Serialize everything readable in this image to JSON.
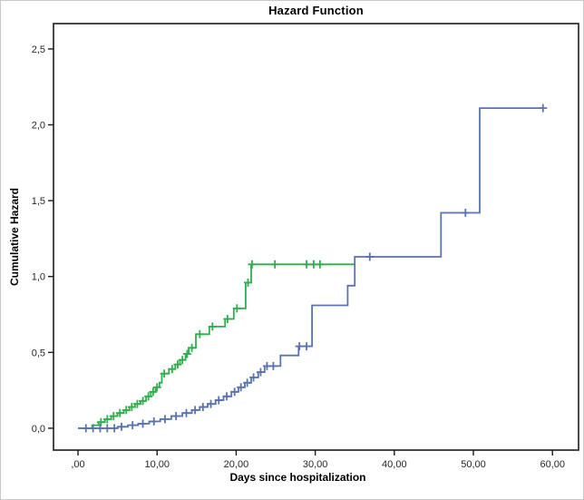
{
  "chart_data": {
    "type": "line",
    "subtype": "step-cumulative-hazard",
    "title": "Hazard Function",
    "xlabel": "Days since hospitalization",
    "ylabel": "Cumulative Hazard",
    "grid": false,
    "legend": "none",
    "frame_color": "#1c1c1c",
    "background_color": "#ffffff",
    "xlim": [
      -3.1,
      63.3
    ],
    "ylim": [
      -0.144,
      2.667
    ],
    "x_ticks": [
      0,
      10,
      20,
      30,
      40,
      50,
      60
    ],
    "x_tick_labels": [
      ",00",
      "10,00",
      "20,00",
      "30,00",
      "40,00",
      "50,00",
      "60,00"
    ],
    "y_ticks": [
      0,
      0.5,
      1.0,
      1.5,
      2.0,
      2.5
    ],
    "y_tick_labels": [
      "0,0",
      "0,5",
      "1,0",
      "1,5",
      "2,0",
      "2,5"
    ],
    "series": [
      {
        "name": "green-group",
        "color": "#2fae4e",
        "end_day": 35.0,
        "steps": [
          [
            0,
            0
          ],
          [
            1.8,
            0.02
          ],
          [
            2.6,
            0.04
          ],
          [
            3.4,
            0.06
          ],
          [
            4.2,
            0.08
          ],
          [
            5,
            0.1
          ],
          [
            5.8,
            0.12
          ],
          [
            6.5,
            0.14
          ],
          [
            7.2,
            0.16
          ],
          [
            7.9,
            0.18
          ],
          [
            8.6,
            0.21
          ],
          [
            9.2,
            0.24
          ],
          [
            9.8,
            0.27
          ],
          [
            10.3,
            0.3
          ],
          [
            10.6,
            0.36
          ],
          [
            11.5,
            0.39
          ],
          [
            12.3,
            0.42
          ],
          [
            12.9,
            0.45
          ],
          [
            13.6,
            0.49
          ],
          [
            14,
            0.53
          ],
          [
            14.9,
            0.62
          ],
          [
            16.6,
            0.67
          ],
          [
            18.6,
            0.72
          ],
          [
            19.7,
            0.79
          ],
          [
            21.2,
            0.96
          ],
          [
            21.9,
            1.08
          ]
        ],
        "censors": [
          [
            2.9,
            0.04
          ],
          [
            3.7,
            0.06
          ],
          [
            4.5,
            0.08
          ],
          [
            5.3,
            0.1
          ],
          [
            6.1,
            0.12
          ],
          [
            6.8,
            0.14
          ],
          [
            7.5,
            0.16
          ],
          [
            8.2,
            0.18
          ],
          [
            8.9,
            0.21
          ],
          [
            9.5,
            0.24
          ],
          [
            10,
            0.27
          ],
          [
            10.9,
            0.36
          ],
          [
            11.9,
            0.39
          ],
          [
            12.6,
            0.42
          ],
          [
            13.2,
            0.45
          ],
          [
            13.8,
            0.49
          ],
          [
            14.4,
            0.53
          ],
          [
            15.4,
            0.62
          ],
          [
            17,
            0.67
          ],
          [
            18.9,
            0.72
          ],
          [
            20.1,
            0.79
          ],
          [
            21.5,
            0.96
          ],
          [
            22,
            1.08
          ],
          [
            24.9,
            1.08
          ],
          [
            28.9,
            1.08
          ],
          [
            29.8,
            1.08
          ],
          [
            30.6,
            1.08
          ]
        ]
      },
      {
        "name": "blue-group",
        "color": "#5873b0",
        "end_day": 58.8,
        "steps": [
          [
            0,
            0
          ],
          [
            5,
            0.01
          ],
          [
            6.3,
            0.02
          ],
          [
            7.6,
            0.03
          ],
          [
            9,
            0.045
          ],
          [
            10.4,
            0.06
          ],
          [
            11.8,
            0.08
          ],
          [
            13.2,
            0.1
          ],
          [
            14.4,
            0.12
          ],
          [
            15.4,
            0.14
          ],
          [
            16.4,
            0.16
          ],
          [
            17.4,
            0.185
          ],
          [
            18.4,
            0.21
          ],
          [
            19.4,
            0.24
          ],
          [
            20.3,
            0.27
          ],
          [
            21.1,
            0.3
          ],
          [
            21.9,
            0.335
          ],
          [
            22.8,
            0.37
          ],
          [
            23.6,
            0.41
          ],
          [
            25.6,
            0.48
          ],
          [
            27.9,
            0.54
          ],
          [
            29.6,
            0.81
          ],
          [
            34.1,
            0.94
          ],
          [
            35,
            1.13
          ],
          [
            45.9,
            1.42
          ],
          [
            50.8,
            2.11
          ]
        ],
        "censors": [
          [
            1,
            0
          ],
          [
            1.9,
            0
          ],
          [
            2.8,
            0
          ],
          [
            3.7,
            0
          ],
          [
            4.6,
            0
          ],
          [
            5.5,
            0.01
          ],
          [
            6.9,
            0.02
          ],
          [
            8.2,
            0.03
          ],
          [
            9.6,
            0.045
          ],
          [
            11,
            0.06
          ],
          [
            12.4,
            0.08
          ],
          [
            13.7,
            0.1
          ],
          [
            14.8,
            0.12
          ],
          [
            15.8,
            0.14
          ],
          [
            16.8,
            0.16
          ],
          [
            17.8,
            0.185
          ],
          [
            18.8,
            0.21
          ],
          [
            19.8,
            0.24
          ],
          [
            20.6,
            0.27
          ],
          [
            21.4,
            0.3
          ],
          [
            22.2,
            0.335
          ],
          [
            23.1,
            0.37
          ],
          [
            23.9,
            0.41
          ],
          [
            24.7,
            0.41
          ],
          [
            28,
            0.54
          ],
          [
            28.9,
            0.54
          ],
          [
            36.9,
            1.13
          ],
          [
            49,
            1.42
          ],
          [
            58.8,
            2.11
          ]
        ]
      }
    ]
  }
}
